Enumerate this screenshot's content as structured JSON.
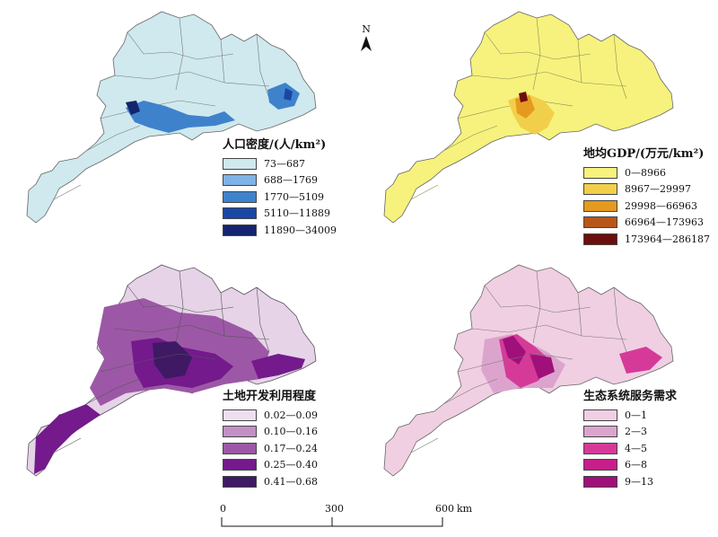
{
  "north_label": "N",
  "maps": [
    {
      "title": "人口密度/(人/km²)",
      "base": "#cfe9ee",
      "legend": [
        {
          "label": "73—687",
          "color": "#cfe9ee"
        },
        {
          "label": "688—1769",
          "color": "#7fb2e5"
        },
        {
          "label": "1770—5109",
          "color": "#3f82cc"
        },
        {
          "label": "5110—11889",
          "color": "#1a47a6"
        },
        {
          "label": "11890—34009",
          "color": "#14246e"
        }
      ]
    },
    {
      "title": "地均GDP/(万元/km²)",
      "base": "#f6f27d",
      "legend": [
        {
          "label": "0—8966",
          "color": "#f6f27d"
        },
        {
          "label": "8967—29997",
          "color": "#f2cf4a"
        },
        {
          "label": "29998—66963",
          "color": "#e59a1f"
        },
        {
          "label": "66964—173963",
          "color": "#b8561a"
        },
        {
          "label": "173964—286187",
          "color": "#6e0d0d"
        }
      ]
    },
    {
      "title": "土地开发利用程度",
      "base": "#e6d3e8",
      "legend": [
        {
          "label": "0.02—0.09",
          "color": "#ece0ee"
        },
        {
          "label": "0.10—0.16",
          "color": "#c190c5"
        },
        {
          "label": "0.17—0.24",
          "color": "#9c58a6"
        },
        {
          "label": "0.25—0.40",
          "color": "#741a8c"
        },
        {
          "label": "0.41—0.68",
          "color": "#3f1964"
        }
      ]
    },
    {
      "title": "生态系统服务需求",
      "base": "#f0cfe2",
      "legend": [
        {
          "label": "0—1",
          "color": "#f0cfe2"
        },
        {
          "label": "2—3",
          "color": "#dca4cd"
        },
        {
          "label": "4—5",
          "color": "#d63a98"
        },
        {
          "label": "6—8",
          "color": "#c81e8a"
        },
        {
          "label": "9—13",
          "color": "#a0107a"
        }
      ]
    }
  ],
  "scale": {
    "ticks": [
      "0",
      "300",
      "600"
    ],
    "unit": "km"
  }
}
